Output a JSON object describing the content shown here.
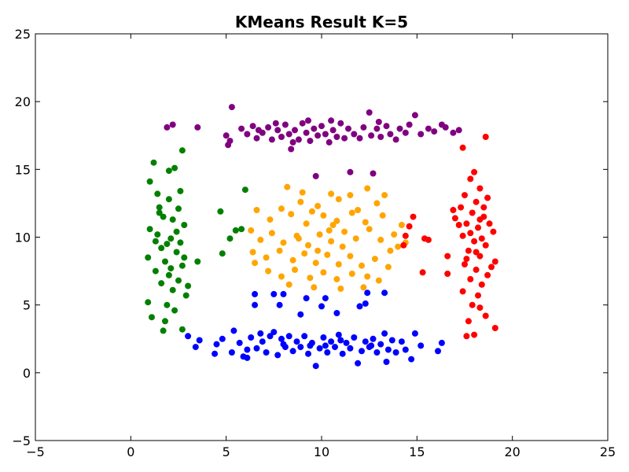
{
  "chart_data": {
    "type": "scatter",
    "title": "KMeans Result K=5",
    "xlabel": "",
    "ylabel": "",
    "xlim": [
      -5,
      25
    ],
    "ylim": [
      -5,
      25
    ],
    "xticks": [
      "−5",
      "0",
      "5",
      "10",
      "15",
      "20",
      "25"
    ],
    "yticks": [
      "−5",
      "0",
      "5",
      "10",
      "15",
      "20",
      "25"
    ],
    "xtick_values": [
      -5,
      0,
      5,
      10,
      15,
      20,
      25
    ],
    "ytick_values": [
      -5,
      0,
      5,
      10,
      15,
      20,
      25
    ],
    "grid": false,
    "legend": "none",
    "series": [
      {
        "color": "#800080",
        "points": [
          [
            1.9,
            18.1
          ],
          [
            2.2,
            18.3
          ],
          [
            3.5,
            18.1
          ],
          [
            5.3,
            19.6
          ],
          [
            5.0,
            17.5
          ],
          [
            5.2,
            17.1
          ],
          [
            5.1,
            16.8
          ],
          [
            5.8,
            18.0
          ],
          [
            6.1,
            17.6
          ],
          [
            6.4,
            18.2
          ],
          [
            6.6,
            17.3
          ],
          [
            6.9,
            17.7
          ],
          [
            7.2,
            18.1
          ],
          [
            7.4,
            17.2
          ],
          [
            7.7,
            17.9
          ],
          [
            7.9,
            17.4
          ],
          [
            8.1,
            18.3
          ],
          [
            8.3,
            17.6
          ],
          [
            8.4,
            16.5
          ],
          [
            8.6,
            17.9
          ],
          [
            8.8,
            17.2
          ],
          [
            9.0,
            18.4
          ],
          [
            9.2,
            17.7
          ],
          [
            9.4,
            17.1
          ],
          [
            9.6,
            18.0
          ],
          [
            9.8,
            17.5
          ],
          [
            10.0,
            18.2
          ],
          [
            10.2,
            17.6
          ],
          [
            10.4,
            17.0
          ],
          [
            10.6,
            17.9
          ],
          [
            10.8,
            17.4
          ],
          [
            11.0,
            18.4
          ],
          [
            11.2,
            17.3
          ],
          [
            11.4,
            18.0
          ],
          [
            11.7,
            17.6
          ],
          [
            12.0,
            17.3
          ],
          [
            12.2,
            18.1
          ],
          [
            12.5,
            19.2
          ],
          [
            12.6,
            17.5
          ],
          [
            12.9,
            18.0
          ],
          [
            13.1,
            17.4
          ],
          [
            13.4,
            18.2
          ],
          [
            13.6,
            17.6
          ],
          [
            13.9,
            17.2
          ],
          [
            14.1,
            18.0
          ],
          [
            14.4,
            17.7
          ],
          [
            14.6,
            18.3
          ],
          [
            14.9,
            19.0
          ],
          [
            15.2,
            17.6
          ],
          [
            15.6,
            18.0
          ],
          [
            15.9,
            17.8
          ],
          [
            16.3,
            18.3
          ],
          [
            16.5,
            18.1
          ],
          [
            16.9,
            17.7
          ],
          [
            17.2,
            17.9
          ],
          [
            8.5,
            17.0
          ],
          [
            9.3,
            18.6
          ],
          [
            10.5,
            18.6
          ],
          [
            11.5,
            14.8
          ],
          [
            12.7,
            14.7
          ],
          [
            9.7,
            14.5
          ],
          [
            6.7,
            17.9
          ],
          [
            7.6,
            18.4
          ],
          [
            13.0,
            18.5
          ]
        ]
      },
      {
        "color": "#008000",
        "points": [
          [
            1.2,
            15.5
          ],
          [
            2.7,
            16.4
          ],
          [
            2.0,
            14.9
          ],
          [
            1.0,
            14.1
          ],
          [
            2.3,
            15.1
          ],
          [
            1.4,
            13.2
          ],
          [
            2.6,
            13.4
          ],
          [
            1.5,
            12.2
          ],
          [
            2.0,
            12.8
          ],
          [
            2.5,
            12.1
          ],
          [
            1.7,
            11.5
          ],
          [
            2.2,
            11.3
          ],
          [
            1.0,
            10.6
          ],
          [
            2.8,
            10.9
          ],
          [
            1.4,
            10.2
          ],
          [
            2.1,
            9.9
          ],
          [
            2.6,
            9.6
          ],
          [
            1.6,
            9.2
          ],
          [
            2.4,
            8.9
          ],
          [
            0.9,
            8.5
          ],
          [
            1.8,
            8.2
          ],
          [
            2.7,
            7.9
          ],
          [
            1.3,
            7.5
          ],
          [
            2.0,
            7.2
          ],
          [
            2.5,
            6.8
          ],
          [
            1.6,
            6.6
          ],
          [
            2.2,
            6.1
          ],
          [
            2.9,
            5.7
          ],
          [
            0.9,
            5.2
          ],
          [
            1.9,
            5.0
          ],
          [
            2.3,
            4.6
          ],
          [
            1.1,
            4.1
          ],
          [
            1.8,
            3.8
          ],
          [
            2.7,
            3.2
          ],
          [
            1.7,
            3.1
          ],
          [
            3.0,
            6.4
          ],
          [
            3.5,
            8.2
          ],
          [
            4.7,
            11.9
          ],
          [
            5.5,
            10.5
          ],
          [
            5.8,
            10.6
          ],
          [
            5.2,
            9.9
          ],
          [
            6.0,
            13.5
          ],
          [
            4.8,
            8.8
          ],
          [
            1.3,
            9.7
          ],
          [
            2.8,
            8.5
          ],
          [
            1.5,
            11.8
          ],
          [
            2.4,
            10.4
          ],
          [
            1.9,
            9.5
          ],
          [
            2.1,
            7.7
          ]
        ]
      },
      {
        "color": "#FFA500",
        "points": [
          [
            7.9,
            12.1
          ],
          [
            8.2,
            13.7
          ],
          [
            9.0,
            13.3
          ],
          [
            9.8,
            12.3
          ],
          [
            10.5,
            13.2
          ],
          [
            11.5,
            13.1
          ],
          [
            12.4,
            13.6
          ],
          [
            13.3,
            13.1
          ],
          [
            6.6,
            12.0
          ],
          [
            7.3,
            11.3
          ],
          [
            8.4,
            11.7
          ],
          [
            9.2,
            11.0
          ],
          [
            10.1,
            11.6
          ],
          [
            10.8,
            11.2
          ],
          [
            11.6,
            11.8
          ],
          [
            12.3,
            11.1
          ],
          [
            13.2,
            11.6
          ],
          [
            14.2,
            10.9
          ],
          [
            6.3,
            10.5
          ],
          [
            6.8,
            9.8
          ],
          [
            7.4,
            10.3
          ],
          [
            8.0,
            9.6
          ],
          [
            8.7,
            10.1
          ],
          [
            9.3,
            9.4
          ],
          [
            9.9,
            10.2
          ],
          [
            10.5,
            9.7
          ],
          [
            11.2,
            10.4
          ],
          [
            11.8,
            9.9
          ],
          [
            12.5,
            10.6
          ],
          [
            13.1,
            9.8
          ],
          [
            13.8,
            10.2
          ],
          [
            14.4,
            9.6
          ],
          [
            6.4,
            8.9
          ],
          [
            7.1,
            8.5
          ],
          [
            7.8,
            9.0
          ],
          [
            8.5,
            8.3
          ],
          [
            9.1,
            8.8
          ],
          [
            9.7,
            8.1
          ],
          [
            10.3,
            8.7
          ],
          [
            10.9,
            8.0
          ],
          [
            11.5,
            8.6
          ],
          [
            12.1,
            7.9
          ],
          [
            12.8,
            8.4
          ],
          [
            13.5,
            7.8
          ],
          [
            14.0,
            9.3
          ],
          [
            7.2,
            7.5
          ],
          [
            7.9,
            7.1
          ],
          [
            8.6,
            7.6
          ],
          [
            9.4,
            7.0
          ],
          [
            10.1,
            7.4
          ],
          [
            10.8,
            6.9
          ],
          [
            11.6,
            7.3
          ],
          [
            12.4,
            7.1
          ],
          [
            13.0,
            6.8
          ],
          [
            8.3,
            6.5
          ],
          [
            9.6,
            6.3
          ],
          [
            11.0,
            6.2
          ],
          [
            12.2,
            6.3
          ],
          [
            6.5,
            8.1
          ],
          [
            13.6,
            9.0
          ],
          [
            8.9,
            12.6
          ],
          [
            10.9,
            12.8
          ],
          [
            11.9,
            12.0
          ],
          [
            9.5,
            11.9
          ],
          [
            10.6,
            10.9
          ],
          [
            9.8,
            9.0
          ],
          [
            10.4,
            10.5
          ],
          [
            11.1,
            9.3
          ],
          [
            8.8,
            9.9
          ],
          [
            12.9,
            12.5
          ]
        ]
      },
      {
        "color": "#FF0000",
        "points": [
          [
            17.4,
            16.6
          ],
          [
            18.0,
            14.8
          ],
          [
            18.6,
            17.4
          ],
          [
            17.8,
            14.3
          ],
          [
            18.3,
            13.6
          ],
          [
            17.5,
            13.1
          ],
          [
            18.1,
            12.6
          ],
          [
            18.7,
            12.9
          ],
          [
            17.3,
            12.2
          ],
          [
            17.9,
            11.8
          ],
          [
            18.5,
            11.5
          ],
          [
            17.6,
            11.0
          ],
          [
            18.2,
            10.7
          ],
          [
            19.0,
            10.4
          ],
          [
            17.4,
            10.1
          ],
          [
            18.0,
            9.7
          ],
          [
            18.6,
            9.4
          ],
          [
            17.7,
            9.0
          ],
          [
            18.3,
            8.6
          ],
          [
            19.1,
            8.2
          ],
          [
            17.5,
            8.0
          ],
          [
            18.1,
            7.6
          ],
          [
            18.7,
            7.2
          ],
          [
            17.8,
            6.9
          ],
          [
            18.4,
            6.5
          ],
          [
            17.4,
            6.0
          ],
          [
            18.2,
            5.7
          ],
          [
            18.9,
            7.8
          ],
          [
            17.9,
            5.0
          ],
          [
            18.3,
            4.8
          ],
          [
            18.6,
            4.2
          ],
          [
            17.7,
            3.8
          ],
          [
            18.0,
            2.8
          ],
          [
            17.6,
            2.7
          ],
          [
            19.1,
            3.3
          ],
          [
            16.6,
            8.6
          ],
          [
            16.6,
            7.3
          ],
          [
            15.3,
            7.4
          ],
          [
            15.6,
            9.8
          ],
          [
            15.4,
            9.9
          ],
          [
            14.8,
            11.5
          ],
          [
            14.6,
            10.8
          ],
          [
            14.4,
            10.1
          ],
          [
            14.3,
            9.4
          ],
          [
            17.0,
            11.4
          ],
          [
            17.2,
            10.9
          ],
          [
            16.9,
            12.0
          ],
          [
            18.8,
            11.0
          ],
          [
            18.4,
            9.9
          ],
          [
            17.6,
            8.4
          ],
          [
            18.5,
            12.2
          ],
          [
            17.8,
            10.3
          ],
          [
            18.1,
            8.9
          ],
          [
            18.3,
            11.3
          ]
        ]
      },
      {
        "color": "#0000FF",
        "points": [
          [
            6.5,
            5.8
          ],
          [
            7.5,
            5.8
          ],
          [
            8.0,
            5.8
          ],
          [
            9.2,
            5.5
          ],
          [
            10.2,
            5.5
          ],
          [
            12.4,
            5.9
          ],
          [
            13.3,
            5.9
          ],
          [
            6.5,
            5.0
          ],
          [
            7.8,
            5.0
          ],
          [
            10.0,
            4.9
          ],
          [
            12.0,
            4.9
          ],
          [
            12.3,
            5.1
          ],
          [
            8.9,
            4.3
          ],
          [
            10.8,
            4.4
          ],
          [
            3.0,
            2.7
          ],
          [
            3.4,
            1.9
          ],
          [
            3.6,
            2.4
          ],
          [
            4.5,
            2.1
          ],
          [
            4.4,
            1.4
          ],
          [
            4.8,
            2.5
          ],
          [
            5.3,
            1.5
          ],
          [
            5.4,
            3.1
          ],
          [
            5.7,
            2.2
          ],
          [
            5.9,
            1.2
          ],
          [
            6.1,
            1.7
          ],
          [
            6.3,
            2.6
          ],
          [
            6.6,
            1.8
          ],
          [
            6.9,
            2.3
          ],
          [
            7.1,
            1.5
          ],
          [
            7.3,
            2.7
          ],
          [
            7.5,
            3.0
          ],
          [
            7.7,
            1.3
          ],
          [
            7.9,
            2.5
          ],
          [
            8.1,
            1.9
          ],
          [
            8.3,
            2.7
          ],
          [
            8.5,
            1.6
          ],
          [
            8.7,
            2.3
          ],
          [
            8.9,
            1.9
          ],
          [
            9.1,
            2.7
          ],
          [
            9.3,
            1.4
          ],
          [
            9.5,
            2.2
          ],
          [
            9.7,
            0.5
          ],
          [
            9.9,
            1.8
          ],
          [
            10.1,
            2.6
          ],
          [
            10.3,
            1.5
          ],
          [
            10.5,
            2.3
          ],
          [
            10.7,
            1.9
          ],
          [
            10.9,
            2.8
          ],
          [
            11.1,
            1.4
          ],
          [
            11.3,
            2.2
          ],
          [
            11.5,
            1.8
          ],
          [
            11.7,
            2.6
          ],
          [
            11.9,
            0.7
          ],
          [
            12.1,
            1.6
          ],
          [
            12.3,
            2.3
          ],
          [
            12.5,
            1.9
          ],
          [
            12.7,
            2.5
          ],
          [
            12.9,
            1.5
          ],
          [
            13.1,
            2.1
          ],
          [
            13.3,
            2.9
          ],
          [
            13.5,
            1.7
          ],
          [
            13.7,
            2.4
          ],
          [
            13.9,
            1.5
          ],
          [
            14.2,
            2.3
          ],
          [
            14.4,
            1.7
          ],
          [
            14.7,
            1.0
          ],
          [
            14.9,
            2.9
          ],
          [
            15.2,
            2.0
          ],
          [
            16.3,
            2.2
          ],
          [
            16.1,
            1.6
          ],
          [
            6.1,
            1.1
          ],
          [
            6.8,
            2.9
          ],
          [
            8.0,
            2.1
          ],
          [
            9.4,
            2.0
          ],
          [
            10.2,
            2.0
          ],
          [
            11.0,
            2.4
          ],
          [
            12.6,
            2.0
          ],
          [
            13.4,
            0.8
          ]
        ]
      }
    ]
  }
}
